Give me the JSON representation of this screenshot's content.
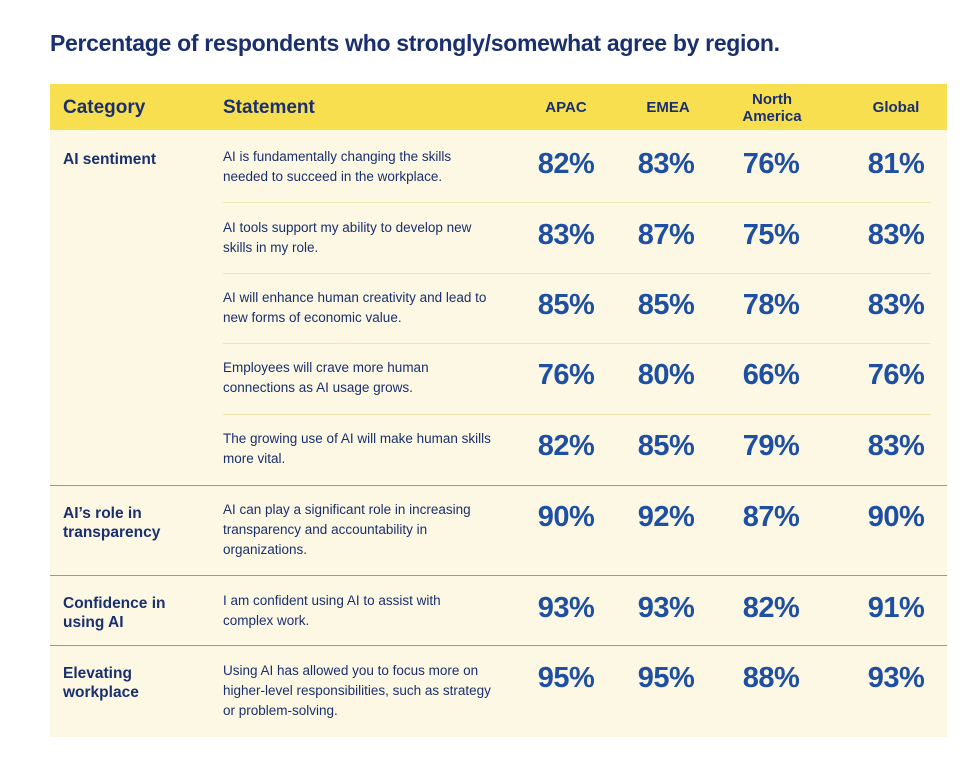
{
  "title": "Percentage of respondents who strongly/somewhat agree by region.",
  "header": {
    "category": "Category",
    "statement": "Statement",
    "regions": [
      "APAC",
      "EMEA",
      "North America",
      "Global"
    ]
  },
  "chart_data": {
    "type": "table",
    "title": "Percentage of respondents who strongly/somewhat agree by region.",
    "columns": [
      "Category",
      "Statement",
      "APAC",
      "EMEA",
      "North America",
      "Global"
    ],
    "groups": [
      {
        "category": "AI sentiment",
        "rows": [
          {
            "statement": "AI is fundamentally changing the skills needed to succeed in the workplace.",
            "values": [
              "82%",
              "83%",
              "76%",
              "81%"
            ]
          },
          {
            "statement": "AI tools support my ability to develop new skills in my role.",
            "values": [
              "83%",
              "87%",
              "75%",
              "83%"
            ]
          },
          {
            "statement": "AI will enhance human creativity and lead to new forms of economic value.",
            "values": [
              "85%",
              "85%",
              "78%",
              "83%"
            ]
          },
          {
            "statement": "Employees will crave more human connections as AI usage grows.",
            "values": [
              "76%",
              "80%",
              "66%",
              "76%"
            ]
          },
          {
            "statement": "The growing use of AI will make human skills more vital.",
            "values": [
              "82%",
              "85%",
              "79%",
              "83%"
            ]
          }
        ]
      },
      {
        "category": "AI’s role in transparency",
        "rows": [
          {
            "statement": "AI can play a significant role in increasing transparency and accountability in organizations.",
            "values": [
              "90%",
              "92%",
              "87%",
              "90%"
            ]
          }
        ]
      },
      {
        "category": "Confidence in using AI",
        "rows": [
          {
            "statement": "I am confident using AI to assist with complex work.",
            "values": [
              "93%",
              "93%",
              "82%",
              "91%"
            ]
          }
        ]
      },
      {
        "category": "Elevating workplace",
        "rows": [
          {
            "statement": "Using AI has allowed you to focus more on higher-level responsibilities, such as strategy or problem-solving.",
            "values": [
              "95%",
              "95%",
              "88%",
              "93%"
            ]
          }
        ]
      }
    ]
  }
}
